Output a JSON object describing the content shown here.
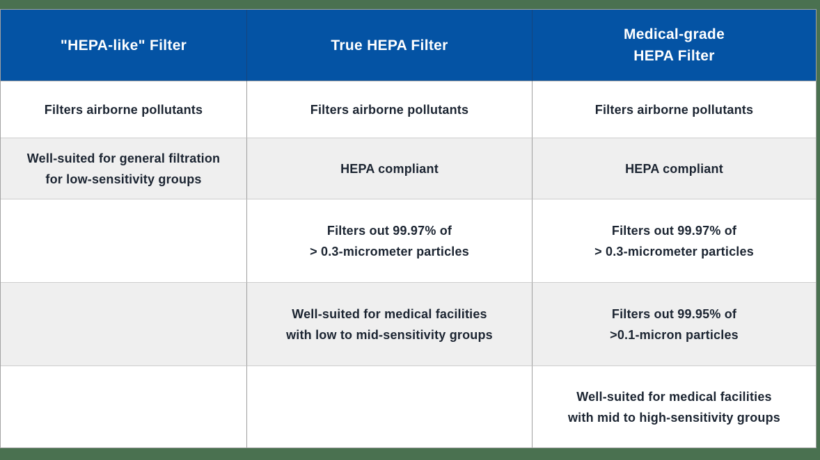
{
  "page": {
    "background_color": "#4a7150",
    "table_border_color": "#a2a2a2",
    "row_divider_color": "#cdcdcd",
    "column_divider_color": "#9f9f9f",
    "header_background_color": "#0453a4",
    "header_text_color": "#ffffff",
    "body_text_color": "#1b2431",
    "alt_row_background_color": "#efefef"
  },
  "table": {
    "columns": [
      "\"HEPA-like\" Filter",
      "True HEPA Filter",
      "Medical-grade\nHEPA Filter"
    ],
    "rows": [
      {
        "cells": [
          "Filters airborne pollutants",
          "Filters airborne pollutants",
          "Filters airborne pollutants"
        ]
      },
      {
        "cells": [
          "Well-suited for general filtration\nfor low-sensitivity groups",
          "HEPA compliant",
          "HEPA compliant"
        ]
      },
      {
        "cells": [
          "",
          "Filters out 99.97% of\n> 0.3-micrometer particles",
          "Filters out 99.97% of\n> 0.3-micrometer particles"
        ]
      },
      {
        "cells": [
          "",
          "Well-suited for medical facilities\nwith low to mid-sensitivity groups",
          "Filters out 99.95% of\n>0.1-micron particles"
        ]
      },
      {
        "cells": [
          "",
          "",
          "Well-suited for medical facilities\nwith mid to high-sensitivity groups"
        ]
      }
    ]
  }
}
